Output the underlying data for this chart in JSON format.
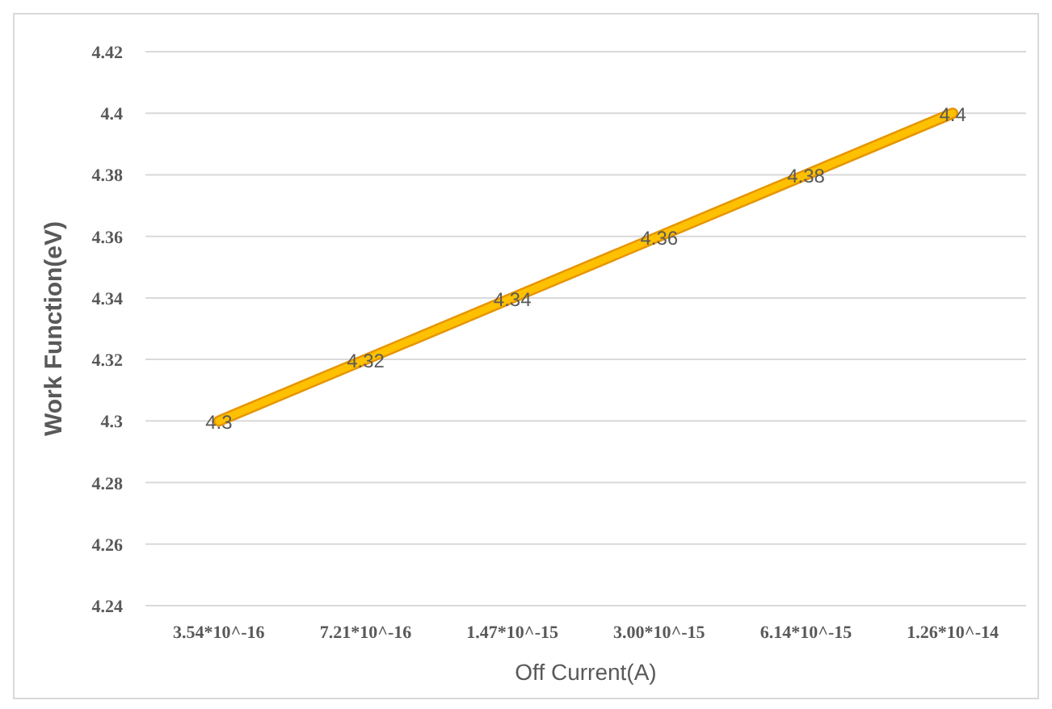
{
  "chart_data": {
    "type": "line",
    "xlabel": "Off Current(A)",
    "ylabel": "Work Function(eV)",
    "categories": [
      "3.54*10^-16",
      "7.21*10^-16",
      "1.47*10^-15",
      "3.00*10^-15",
      "6.14*10^-15",
      "1.26*10^-14"
    ],
    "series": [
      {
        "color": "#ffc000",
        "values": [
          4.3,
          4.32,
          4.34,
          4.36,
          4.38,
          4.4
        ]
      }
    ],
    "ylim": [
      4.24,
      4.42
    ],
    "yticks": [
      4.24,
      4.26,
      4.28,
      4.3,
      4.32,
      4.34,
      4.36,
      4.38,
      4.4,
      4.42
    ],
    "grid": "y",
    "data_labels": true,
    "marker": "none",
    "line_style": "solid"
  }
}
